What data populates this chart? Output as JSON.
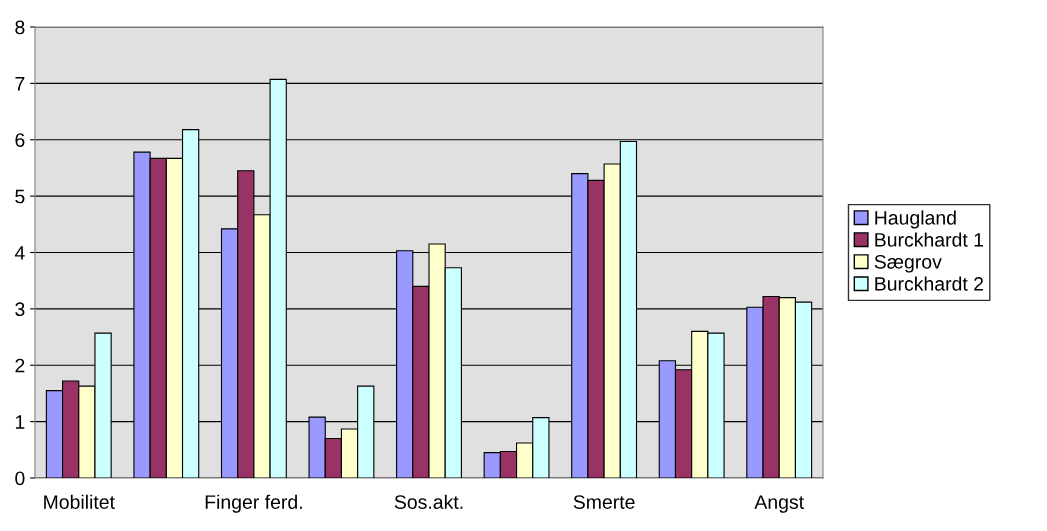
{
  "chart_data": {
    "type": "bar",
    "categories": [
      "Mobilitet",
      null,
      "Finger ferd.",
      null,
      "Sos.akt.",
      null,
      "Smerte",
      null,
      "Angst"
    ],
    "series": [
      {
        "name": "Haugland",
        "color": "#9999ff",
        "values": [
          1.55,
          5.78,
          4.42,
          1.08,
          4.03,
          0.45,
          5.4,
          2.08,
          3.03
        ]
      },
      {
        "name": "Burckhardt 1",
        "color": "#993366",
        "values": [
          1.72,
          5.67,
          5.45,
          0.7,
          3.4,
          0.47,
          5.28,
          1.92,
          3.22
        ]
      },
      {
        "name": "Sægrov",
        "color": "#ffffcc",
        "values": [
          1.63,
          5.67,
          4.67,
          0.87,
          4.15,
          0.62,
          5.57,
          2.6,
          3.2
        ]
      },
      {
        "name": "Burckhardt 2",
        "color": "#ccffff",
        "values": [
          2.57,
          6.18,
          7.07,
          1.63,
          3.73,
          1.07,
          5.97,
          2.57,
          3.12
        ]
      }
    ],
    "ylim": [
      0,
      8
    ],
    "yticks": [
      0,
      1,
      2,
      3,
      4,
      5,
      6,
      7,
      8
    ],
    "grid": "y",
    "legend": "right"
  }
}
